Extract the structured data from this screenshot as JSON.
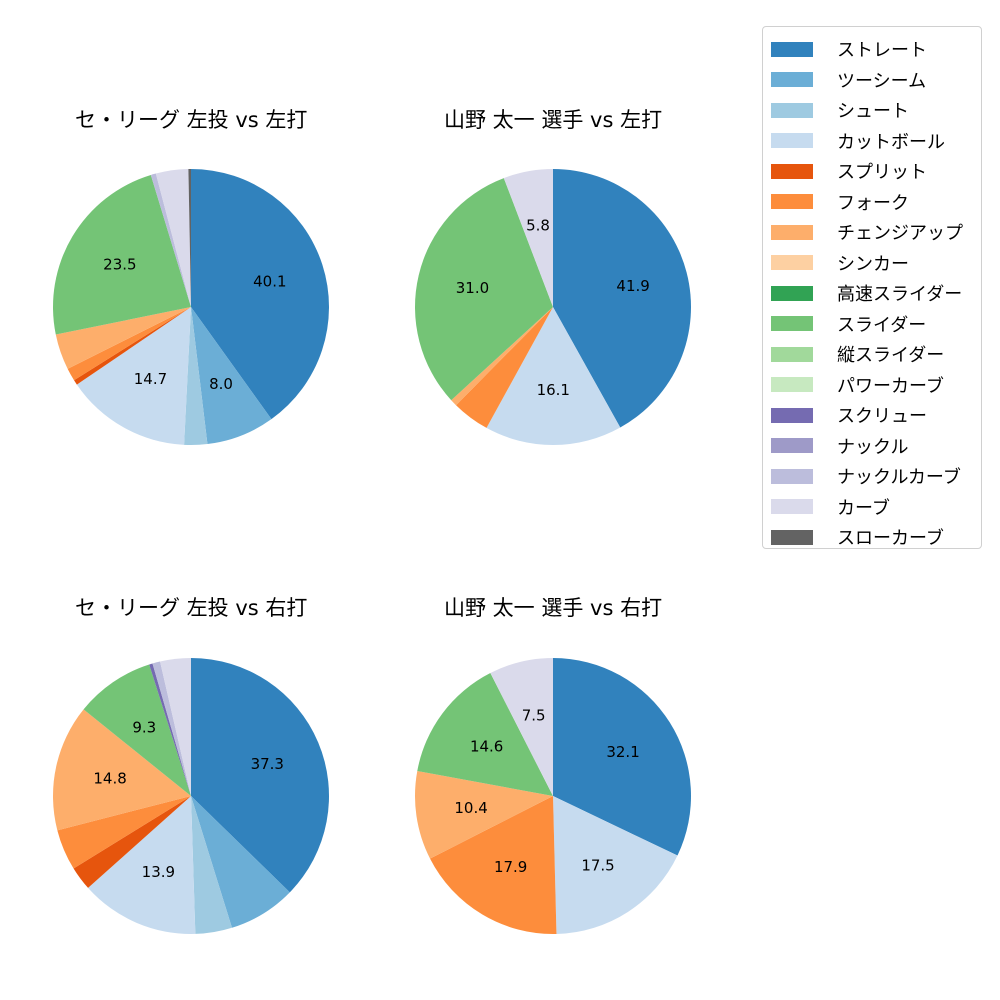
{
  "chart_data": [
    {
      "type": "pie",
      "title": "セ・リーグ 左投 vs 左打",
      "start_angle": 90,
      "direction": "clockwise",
      "categories": [
        "ストレート",
        "ツーシーム",
        "シュート",
        "カットボール",
        "スプリット",
        "フォーク",
        "チェンジアップ",
        "スライダー",
        "ナックルカーブ",
        "カーブ",
        "スローカーブ"
      ],
      "values": [
        40.1,
        8.0,
        2.7,
        14.7,
        0.6,
        1.5,
        4.2,
        23.5,
        0.6,
        3.8,
        0.3
      ],
      "labeled": [
        40.1,
        8.0,
        null,
        14.7,
        null,
        null,
        null,
        23.5,
        null,
        null,
        null
      ]
    },
    {
      "type": "pie",
      "title": "山野 太一 選手 vs 左打",
      "start_angle": 90,
      "direction": "clockwise",
      "categories": [
        "ストレート",
        "カットボール",
        "フォーク",
        "チェンジアップ",
        "スライダー",
        "カーブ"
      ],
      "values": [
        41.9,
        16.1,
        4.4,
        0.8,
        31.0,
        5.8
      ],
      "labeled": [
        41.9,
        16.1,
        null,
        null,
        31.0,
        5.8
      ]
    },
    {
      "type": "pie",
      "title": "セ・リーグ 左投 vs 右打",
      "start_angle": 90,
      "direction": "clockwise",
      "categories": [
        "ストレート",
        "ツーシーム",
        "シュート",
        "カットボール",
        "スプリット",
        "フォーク",
        "チェンジアップ",
        "スライダー",
        "スクリュー",
        "ナックルカーブ",
        "カーブ"
      ],
      "values": [
        37.3,
        7.9,
        4.3,
        13.9,
        2.8,
        4.8,
        14.8,
        9.3,
        0.4,
        0.9,
        3.6
      ],
      "labeled": [
        37.3,
        null,
        null,
        13.9,
        null,
        null,
        14.8,
        9.3,
        null,
        null,
        null
      ]
    },
    {
      "type": "pie",
      "title": "山野 太一 選手 vs 右打",
      "start_angle": 90,
      "direction": "clockwise",
      "categories": [
        "ストレート",
        "カットボール",
        "フォーク",
        "チェンジアップ",
        "スライダー",
        "カーブ"
      ],
      "values": [
        32.1,
        17.5,
        17.9,
        10.4,
        14.6,
        7.5
      ],
      "labeled": [
        32.1,
        17.5,
        17.9,
        10.4,
        14.6,
        7.5
      ]
    }
  ],
  "legend": {
    "position": "upper right",
    "items": [
      {
        "label": "ストレート",
        "color": "#3182bd"
      },
      {
        "label": "ツーシーム",
        "color": "#6baed6"
      },
      {
        "label": "シュート",
        "color": "#9ecae1"
      },
      {
        "label": "カットボール",
        "color": "#c6dbef"
      },
      {
        "label": "スプリット",
        "color": "#e6550d"
      },
      {
        "label": "フォーク",
        "color": "#fd8d3c"
      },
      {
        "label": "チェンジアップ",
        "color": "#fdae6b"
      },
      {
        "label": "シンカー",
        "color": "#fdd0a2"
      },
      {
        "label": "高速スライダー",
        "color": "#31a354"
      },
      {
        "label": "スライダー",
        "color": "#74c476"
      },
      {
        "label": "縦スライダー",
        "color": "#a1d99b"
      },
      {
        "label": "パワーカーブ",
        "color": "#c7e9c0"
      },
      {
        "label": "スクリュー",
        "color": "#756bb1"
      },
      {
        "label": "ナックル",
        "color": "#9e9ac8"
      },
      {
        "label": "ナックルカーブ",
        "color": "#bcbddc"
      },
      {
        "label": "カーブ",
        "color": "#dadaeb"
      },
      {
        "label": "スローカーブ",
        "color": "#636363"
      }
    ]
  }
}
